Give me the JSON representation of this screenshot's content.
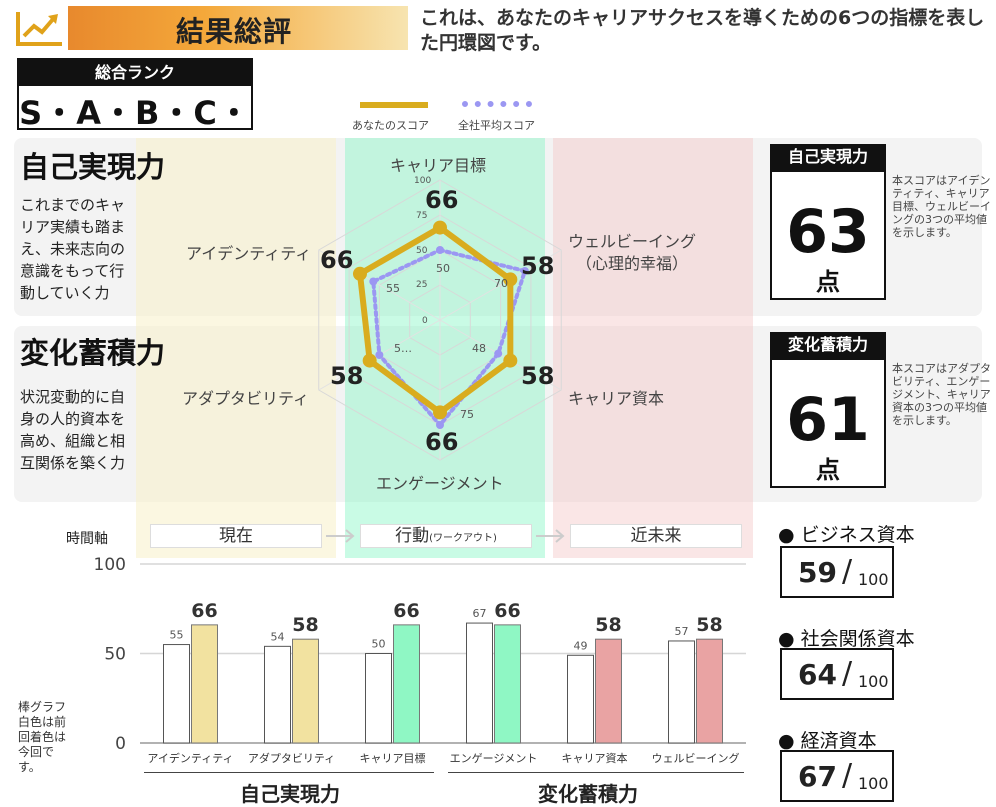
{
  "header": {
    "title": "結果総評",
    "description": "これは、あなたのキャリアサクセスを導くための6つの指標を表した円環図です。",
    "icon": "trend-chart-icon"
  },
  "rank": {
    "label": "総合ランク",
    "value": "S・A・B・C・D"
  },
  "legend": {
    "you": "あなたのスコア",
    "avg": "全社平均スコア"
  },
  "sections": {
    "self": {
      "title": "自己実現力",
      "desc": "これまでのキャリア実績も踏まえ、未来志向の意識をもって行動していく力"
    },
    "change": {
      "title": "変化蓄積力",
      "desc": "状況変動的に自身の人的資本を高め、組織と相互関係を築く力"
    }
  },
  "scores": {
    "self": {
      "label": "自己実現力",
      "value": "63",
      "unit": "点",
      "note": "本スコアはアイデンティティ、キャリア目標、ウェルビーイングの3つの平均値を示します。"
    },
    "change": {
      "label": "変化蓄積力",
      "value": "61",
      "unit": "点",
      "note": "本スコアはアダプタビリティ、エンゲージメント、キャリア資本の3つの平均値を示します。"
    }
  },
  "radar": {
    "axes": [
      "キャリア目標",
      "ウェルビーイング",
      "キャリア資本",
      "エンゲージメント",
      "アダプタビリティ",
      "アイデンティティ"
    ],
    "axis_sublabels": {
      "ウェルビーイング": "（心理的幸福）"
    },
    "you": [
      66,
      58,
      58,
      66,
      58,
      66
    ],
    "avg": [
      50,
      70,
      48,
      75,
      50,
      55
    ],
    "scale_ticks": [
      "100",
      "75",
      "50",
      "25",
      "0"
    ],
    "scale_max": 100,
    "inner_labels": [
      "50",
      "70",
      "48",
      "75",
      "5…",
      "55"
    ]
  },
  "time_axis": {
    "label": "時間軸",
    "items": [
      "現在",
      "行動",
      "近未来"
    ],
    "action_sub": "(ワークアウト)"
  },
  "capitals": [
    {
      "label": "ビジネス資本",
      "value": "59",
      "max": "100"
    },
    {
      "label": "社会関係資本",
      "value": "64",
      "max": "100"
    },
    {
      "label": "経済資本",
      "value": "67",
      "max": "100"
    }
  ],
  "bar_note": "棒グラフ白色は前回着色は今回です。",
  "group_labels": [
    "自己実現力",
    "変化蓄積力"
  ],
  "chart_data": {
    "type": "bar",
    "categories": [
      "アイデンティティ",
      "アダプタビリティ",
      "キャリア目標",
      "エンゲージメント",
      "キャリア資本",
      "ウェルビーイング"
    ],
    "series": [
      {
        "values": [
          55,
          54,
          50,
          67,
          49,
          57
        ]
      },
      {
        "values": [
          66,
          58,
          66,
          66,
          58,
          58
        ]
      }
    ],
    "y_ticks": [
      "100",
      "50",
      "0"
    ],
    "ylim": [
      0,
      100
    ],
    "colors": {
      "previous": "#ffffff",
      "current": [
        "#f2e2a0",
        "#f2e2a0",
        "#8ff7c4",
        "#8ff7c4",
        "#e9a3a3",
        "#e9a3a3"
      ]
    },
    "grid": true
  }
}
